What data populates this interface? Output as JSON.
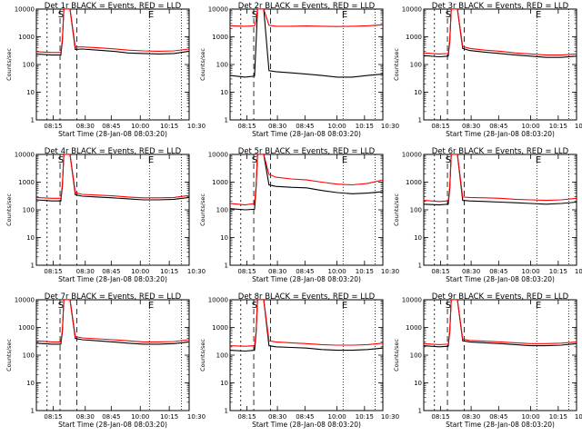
{
  "chart_data": [
    {
      "type": "line",
      "title": "Det 1r BLACK = Events, RED = LLD",
      "xlabel": "Start Time (28-Jan-08 08:03:20)",
      "ylabel": "Counts/sec",
      "yscale": "log",
      "ylim": [
        1,
        10000
      ],
      "x_ticks": [
        "08:15",
        "08:30",
        "08:45",
        "10:00",
        "10:15",
        "10:30"
      ],
      "markers": [
        "S",
        "E"
      ],
      "series": [
        {
          "name": "Events",
          "color": "#000000",
          "x": [
            0,
            0.1,
            0.16,
            0.17,
            0.18,
            0.19,
            0.22,
            0.255,
            0.3,
            0.4,
            0.5,
            0.6,
            0.7,
            0.8,
            0.9,
            1.0
          ],
          "values": [
            240,
            220,
            220,
            700,
            10000,
            10000,
            10000,
            350,
            360,
            330,
            300,
            260,
            250,
            240,
            250,
            300
          ]
        },
        {
          "name": "LLD",
          "color": "#ff0000",
          "x": [
            0,
            0.1,
            0.16,
            0.17,
            0.18,
            0.19,
            0.22,
            0.255,
            0.3,
            0.4,
            0.5,
            0.6,
            0.7,
            0.8,
            0.9,
            1.0
          ],
          "values": [
            290,
            270,
            270,
            800,
            10000,
            10000,
            10000,
            430,
            430,
            400,
            370,
            330,
            310,
            300,
            310,
            360
          ]
        }
      ]
    },
    {
      "type": "line",
      "title": "Det 2r BLACK = Events, RED = LLD",
      "xlabel": "Start Time (28-Jan-08 08:03:20)",
      "ylabel": "Counts/sec",
      "yscale": "log",
      "ylim": [
        1,
        10000
      ],
      "x_ticks": [
        "08:15",
        "08:30",
        "08:45",
        "10:00",
        "10:15",
        "10:30"
      ],
      "markers": [
        "S",
        "E"
      ],
      "series": [
        {
          "name": "Events",
          "color": "#000000",
          "x": [
            0,
            0.1,
            0.16,
            0.17,
            0.18,
            0.19,
            0.22,
            0.255,
            0.3,
            0.4,
            0.5,
            0.6,
            0.7,
            0.8,
            0.9,
            1.0
          ],
          "values": [
            40,
            35,
            38,
            600,
            10000,
            10000,
            10000,
            60,
            55,
            50,
            45,
            40,
            35,
            35,
            40,
            45
          ]
        },
        {
          "name": "LLD",
          "color": "#ff0000",
          "x": [
            0,
            0.1,
            0.16,
            0.17,
            0.18,
            0.19,
            0.22,
            0.255,
            0.3,
            0.4,
            0.5,
            0.6,
            0.7,
            0.8,
            0.9,
            1.0
          ],
          "values": [
            2500,
            2400,
            2500,
            4000,
            10000,
            10000,
            10000,
            2600,
            2400,
            2400,
            2450,
            2400,
            2350,
            2400,
            2500,
            2700
          ]
        }
      ]
    },
    {
      "type": "line",
      "title": "Det 3r BLACK = Events, RED = LLD",
      "xlabel": "Start Time (28-Jan-08 08:03:20)",
      "ylabel": "Counts/sec",
      "yscale": "log",
      "ylim": [
        1,
        10000
      ],
      "x_ticks": [
        "08:15",
        "08:30",
        "08:45",
        "10:00",
        "10:15",
        "10:30"
      ],
      "markers": [
        "S",
        "E"
      ],
      "series": [
        {
          "name": "Events",
          "color": "#000000",
          "x": [
            0,
            0.1,
            0.16,
            0.17,
            0.18,
            0.19,
            0.22,
            0.255,
            0.3,
            0.4,
            0.5,
            0.6,
            0.7,
            0.8,
            0.9,
            1.0
          ],
          "values": [
            210,
            190,
            200,
            700,
            10000,
            10000,
            10000,
            380,
            320,
            280,
            250,
            220,
            200,
            180,
            180,
            200
          ]
        },
        {
          "name": "LLD",
          "color": "#ff0000",
          "x": [
            0,
            0.1,
            0.16,
            0.17,
            0.18,
            0.19,
            0.22,
            0.255,
            0.3,
            0.4,
            0.5,
            0.6,
            0.7,
            0.8,
            0.9,
            1.0
          ],
          "values": [
            260,
            240,
            250,
            800,
            10000,
            10000,
            10000,
            450,
            380,
            330,
            300,
            260,
            240,
            220,
            220,
            240
          ]
        }
      ]
    },
    {
      "type": "line",
      "title": "Det 4r BLACK = Events, RED = LLD",
      "xlabel": "Start Time (28-Jan-08 08:03:20)",
      "ylabel": "Counts/sec",
      "yscale": "log",
      "ylim": [
        1,
        10000
      ],
      "x_ticks": [
        "08:15",
        "08:30",
        "08:45",
        "10:00",
        "10:15",
        "10:30"
      ],
      "markers": [
        "S",
        "E"
      ],
      "series": [
        {
          "name": "Events",
          "color": "#000000",
          "x": [
            0,
            0.1,
            0.16,
            0.17,
            0.18,
            0.19,
            0.22,
            0.255,
            0.3,
            0.4,
            0.5,
            0.6,
            0.7,
            0.8,
            0.9,
            1.0
          ],
          "values": [
            230,
            210,
            210,
            700,
            10000,
            10000,
            10000,
            350,
            310,
            290,
            270,
            250,
            230,
            230,
            240,
            280
          ]
        },
        {
          "name": "LLD",
          "color": "#ff0000",
          "x": [
            0,
            0.1,
            0.16,
            0.17,
            0.18,
            0.19,
            0.22,
            0.255,
            0.3,
            0.4,
            0.5,
            0.6,
            0.7,
            0.8,
            0.9,
            1.0
          ],
          "values": [
            280,
            260,
            260,
            800,
            10000,
            10000,
            10000,
            420,
            360,
            340,
            320,
            290,
            270,
            270,
            280,
            330
          ]
        }
      ]
    },
    {
      "type": "line",
      "title": "Det 5r BLACK = Events, RED = LLD",
      "xlabel": "Start Time (28-Jan-08 08:03:20)",
      "ylabel": "Counts/sec",
      "yscale": "log",
      "ylim": [
        1,
        10000
      ],
      "x_ticks": [
        "08:15",
        "08:30",
        "08:45",
        "10:00",
        "10:15",
        "10:30"
      ],
      "markers": [
        "S",
        "E"
      ],
      "series": [
        {
          "name": "Events",
          "color": "#000000",
          "x": [
            0,
            0.1,
            0.16,
            0.17,
            0.18,
            0.19,
            0.22,
            0.255,
            0.3,
            0.4,
            0.5,
            0.6,
            0.7,
            0.8,
            0.9,
            1.0
          ],
          "values": [
            110,
            100,
            105,
            600,
            10000,
            10000,
            10000,
            800,
            700,
            650,
            620,
            500,
            420,
            380,
            400,
            450
          ]
        },
        {
          "name": "LLD",
          "color": "#ff0000",
          "x": [
            0,
            0.1,
            0.16,
            0.17,
            0.18,
            0.19,
            0.22,
            0.255,
            0.3,
            0.4,
            0.5,
            0.6,
            0.7,
            0.8,
            0.9,
            1.0
          ],
          "values": [
            170,
            150,
            170,
            700,
            10000,
            10000,
            10000,
            1900,
            1500,
            1300,
            1200,
            1000,
            850,
            800,
            900,
            1200
          ]
        }
      ]
    },
    {
      "type": "line",
      "title": "Det 6r BLACK = Events, RED = LLD",
      "xlabel": "Start Time (28-Jan-08 08:03:20)",
      "ylabel": "Counts/sec",
      "yscale": "log",
      "ylim": [
        1,
        10000
      ],
      "x_ticks": [
        "08:15",
        "08:30",
        "08:45",
        "10:00",
        "10:15",
        "10:30"
      ],
      "markers": [
        "S",
        "E"
      ],
      "series": [
        {
          "name": "Events",
          "color": "#000000",
          "x": [
            0,
            0.1,
            0.16,
            0.17,
            0.18,
            0.19,
            0.22,
            0.255,
            0.3,
            0.4,
            0.5,
            0.6,
            0.7,
            0.8,
            0.9,
            1.0
          ],
          "values": [
            160,
            150,
            160,
            600,
            10000,
            10000,
            10000,
            220,
            210,
            200,
            190,
            180,
            170,
            160,
            170,
            190
          ]
        },
        {
          "name": "LLD",
          "color": "#ff0000",
          "x": [
            0,
            0.1,
            0.16,
            0.17,
            0.18,
            0.19,
            0.22,
            0.255,
            0.3,
            0.4,
            0.5,
            0.6,
            0.7,
            0.8,
            0.9,
            1.0
          ],
          "values": [
            220,
            200,
            210,
            700,
            10000,
            10000,
            10000,
            290,
            280,
            270,
            260,
            240,
            230,
            220,
            230,
            260
          ]
        }
      ]
    },
    {
      "type": "line",
      "title": "Det 7r BLACK = Events, RED = LLD",
      "xlabel": "Start Time (28-Jan-08 08:03:20)",
      "ylabel": "Counts/sec",
      "yscale": "log",
      "ylim": [
        1,
        10000
      ],
      "x_ticks": [
        "08:15",
        "08:30",
        "08:45",
        "10:00",
        "10:15",
        "10:30"
      ],
      "markers": [
        "S",
        "E"
      ],
      "series": [
        {
          "name": "Events",
          "color": "#000000",
          "x": [
            0,
            0.1,
            0.16,
            0.17,
            0.18,
            0.19,
            0.22,
            0.255,
            0.3,
            0.4,
            0.5,
            0.6,
            0.7,
            0.8,
            0.9,
            1.0
          ],
          "values": [
            270,
            250,
            250,
            700,
            10000,
            10000,
            10000,
            400,
            360,
            330,
            300,
            270,
            250,
            250,
            260,
            300
          ]
        },
        {
          "name": "LLD",
          "color": "#ff0000",
          "x": [
            0,
            0.1,
            0.16,
            0.17,
            0.18,
            0.19,
            0.22,
            0.255,
            0.3,
            0.4,
            0.5,
            0.6,
            0.7,
            0.8,
            0.9,
            1.0
          ],
          "values": [
            330,
            300,
            300,
            800,
            10000,
            10000,
            10000,
            470,
            420,
            390,
            360,
            330,
            300,
            300,
            310,
            360
          ]
        }
      ]
    },
    {
      "type": "line",
      "title": "Det 8r BLACK = Events, RED = LLD",
      "xlabel": "Start Time (28-Jan-08 08:03:20)",
      "ylabel": "Counts/sec",
      "yscale": "log",
      "ylim": [
        1,
        10000
      ],
      "x_ticks": [
        "08:15",
        "08:30",
        "08:45",
        "10:00",
        "10:15",
        "10:30"
      ],
      "markers": [
        "S",
        "E"
      ],
      "series": [
        {
          "name": "Events",
          "color": "#000000",
          "x": [
            0,
            0.1,
            0.16,
            0.17,
            0.18,
            0.19,
            0.22,
            0.255,
            0.3,
            0.4,
            0.5,
            0.6,
            0.7,
            0.8,
            0.9,
            1.0
          ],
          "values": [
            150,
            140,
            150,
            600,
            10000,
            10000,
            10000,
            220,
            200,
            190,
            180,
            160,
            150,
            150,
            160,
            180
          ]
        },
        {
          "name": "LLD",
          "color": "#ff0000",
          "x": [
            0,
            0.1,
            0.16,
            0.17,
            0.18,
            0.19,
            0.22,
            0.255,
            0.3,
            0.4,
            0.5,
            0.6,
            0.7,
            0.8,
            0.9,
            1.0
          ],
          "values": [
            220,
            210,
            220,
            700,
            10000,
            10000,
            10000,
            330,
            300,
            280,
            260,
            240,
            230,
            230,
            240,
            270
          ]
        }
      ]
    },
    {
      "type": "line",
      "title": "Det 9r BLACK = Events, RED = LLD",
      "xlabel": "Start Time (28-Jan-08 08:03:20)",
      "ylabel": "Counts/sec",
      "yscale": "log",
      "ylim": [
        1,
        10000
      ],
      "x_ticks": [
        "08:15",
        "08:30",
        "08:45",
        "10:00",
        "10:15",
        "10:30"
      ],
      "markers": [
        "S",
        "E"
      ],
      "series": [
        {
          "name": "Events",
          "color": "#000000",
          "x": [
            0,
            0.1,
            0.16,
            0.17,
            0.18,
            0.19,
            0.22,
            0.255,
            0.3,
            0.4,
            0.5,
            0.6,
            0.7,
            0.8,
            0.9,
            1.0
          ],
          "values": [
            220,
            200,
            210,
            700,
            10000,
            10000,
            10000,
            330,
            300,
            280,
            260,
            240,
            220,
            220,
            230,
            260
          ]
        },
        {
          "name": "LLD",
          "color": "#ff0000",
          "x": [
            0,
            0.1,
            0.16,
            0.17,
            0.18,
            0.19,
            0.22,
            0.255,
            0.3,
            0.4,
            0.5,
            0.6,
            0.7,
            0.8,
            0.9,
            1.0
          ],
          "values": [
            260,
            240,
            250,
            800,
            10000,
            10000,
            10000,
            380,
            340,
            320,
            300,
            280,
            260,
            260,
            270,
            300
          ]
        }
      ]
    }
  ]
}
